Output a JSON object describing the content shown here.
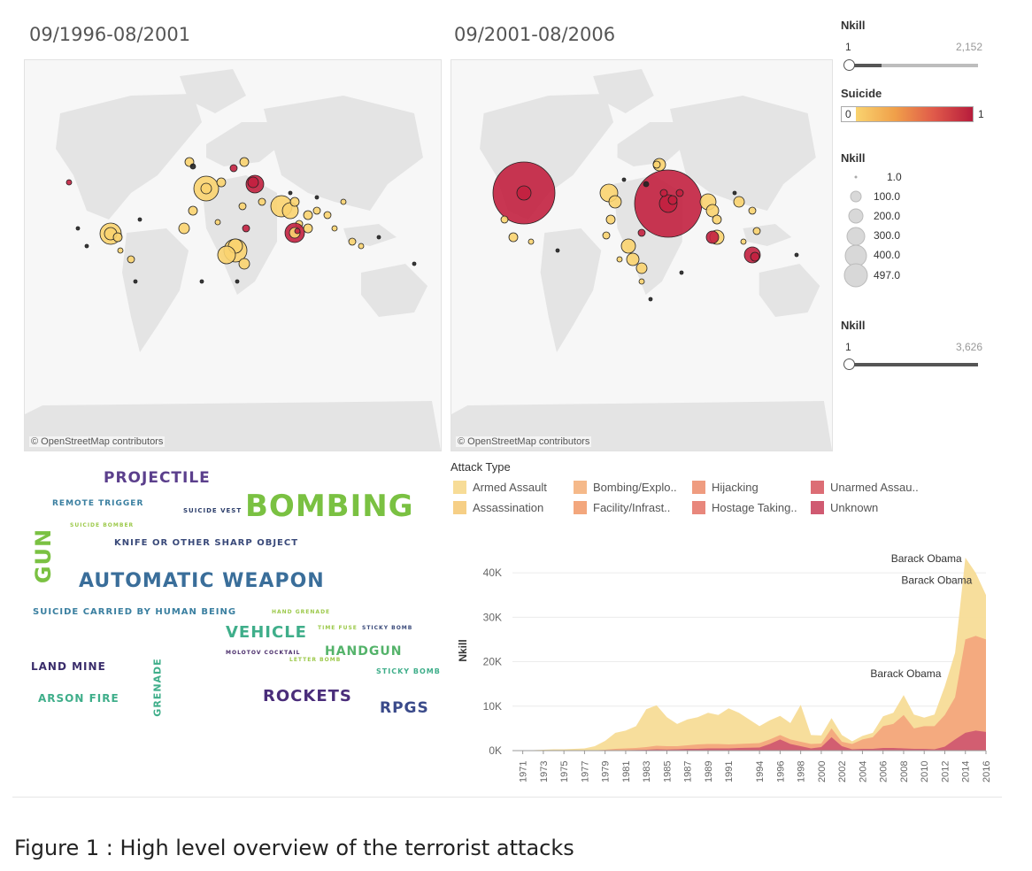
{
  "maps": [
    {
      "title": "09/1996-08/2001",
      "credit": "© OpenStreetMap contributors"
    },
    {
      "title": "09/2001-08/2006",
      "credit": "© OpenStreetMap contributors"
    }
  ],
  "legend": {
    "nkill_slider_1": {
      "title": "Nkill",
      "min": "1",
      "max": "2,152"
    },
    "suicide": {
      "title": "Suicide",
      "min": "0",
      "max": "1",
      "color_low": "#f9d36f",
      "color_high": "#b71c3c"
    },
    "nkill_size": {
      "title": "Nkill",
      "values": [
        "1.0",
        "100.0",
        "200.0",
        "300.0",
        "400.0",
        "497.0"
      ]
    },
    "nkill_slider_2": {
      "title": "Nkill",
      "min": "1",
      "max": "3,626"
    }
  },
  "attack_type": {
    "title": "Attack Type",
    "items": [
      {
        "label": "Armed Assault",
        "color": "#f7dc97"
      },
      {
        "label": "Assassination",
        "color": "#f6cf86"
      },
      {
        "label": "Bombing/Explo..",
        "color": "#f5b98a"
      },
      {
        "label": "Facility/Infrast..",
        "color": "#f3a77d"
      },
      {
        "label": "Hijacking",
        "color": "#ef9c80"
      },
      {
        "label": "Hostage Taking..",
        "color": "#e8877c"
      },
      {
        "label": "Unarmed Assau..",
        "color": "#dc6d75"
      },
      {
        "label": "Unknown",
        "color": "#d05a71"
      }
    ]
  },
  "word_cloud": {
    "words": [
      {
        "text": "PROJECTILE",
        "color": "#5b3f8c"
      },
      {
        "text": "REMOTE TRIGGER",
        "color": "#3a7fa0"
      },
      {
        "text": "SUICIDE VEST",
        "color": "#2c3e6b"
      },
      {
        "text": "BOMBING",
        "color": "#7ac142"
      },
      {
        "text": "SUICIDE BOMBER",
        "color": "#9cc94a"
      },
      {
        "text": "KNIFE OR OTHER SHARP OBJECT",
        "color": "#3a4a7a"
      },
      {
        "text": "GUN",
        "color": "#7ac142"
      },
      {
        "text": "AUTOMATIC WEAPON",
        "color": "#3a6e9a"
      },
      {
        "text": "SUICIDE CARRIED BY HUMAN BEING",
        "color": "#3a7fa0"
      },
      {
        "text": "HAND GRENADE",
        "color": "#9cc94a"
      },
      {
        "text": "VEHICLE",
        "color": "#3fae8a"
      },
      {
        "text": "TIME FUSE",
        "color": "#9cc94a"
      },
      {
        "text": "STICKY BOMB",
        "color": "#3a4a7a"
      },
      {
        "text": "MOLOTOV COCKTAIL",
        "color": "#4a2d6b"
      },
      {
        "text": "HANDGUN",
        "color": "#54b36a"
      },
      {
        "text": "LETTER BOMB",
        "color": "#9cc94a"
      },
      {
        "text": "STICKY BOMB",
        "color": "#3fae8a"
      },
      {
        "text": "LAND MINE",
        "color": "#3a2d6b"
      },
      {
        "text": "GRENADE",
        "color": "#3fae8a"
      },
      {
        "text": "ARSON FIRE",
        "color": "#3fae8a"
      },
      {
        "text": "ROCKETS",
        "color": "#4a2d7a"
      },
      {
        "text": "RPGS",
        "color": "#3a4a8a"
      }
    ]
  },
  "chart_data": {
    "type": "area",
    "ylabel": "Nkill",
    "yticks": [
      "0K",
      "10K",
      "20K",
      "30K",
      "40K"
    ],
    "ylim": [
      0,
      45000
    ],
    "x_labels": [
      "1971",
      "1973",
      "1975",
      "1977",
      "1979",
      "1981",
      "1983",
      "1985",
      "1987",
      "1989",
      "1991",
      "1994",
      "1996",
      "1998",
      "2000",
      "2002",
      "2004",
      "2006",
      "2008",
      "2010",
      "2012",
      "2014",
      "2016"
    ],
    "x": [
      1970,
      1971,
      1972,
      1973,
      1974,
      1975,
      1976,
      1977,
      1978,
      1979,
      1980,
      1981,
      1982,
      1983,
      1984,
      1985,
      1986,
      1987,
      1988,
      1989,
      1990,
      1991,
      1992,
      1994,
      1995,
      1996,
      1997,
      1998,
      1999,
      2000,
      2001,
      2002,
      2003,
      2004,
      2005,
      2006,
      2007,
      2008,
      2009,
      2010,
      2011,
      2012,
      2013,
      2014,
      2015,
      2016
    ],
    "series": [
      {
        "color": "#d05a71",
        "values": [
          0,
          0,
          0,
          0,
          0,
          0,
          0,
          0,
          0,
          50,
          80,
          100,
          150,
          200,
          300,
          250,
          300,
          400,
          400,
          500,
          500,
          500,
          600,
          700,
          1500,
          2500,
          1500,
          1000,
          500,
          800,
          3000,
          1000,
          300,
          400,
          400,
          600,
          600,
          500,
          400,
          400,
          300,
          900,
          2500,
          4000,
          4500,
          4200
        ]
      },
      {
        "color": "#f3a77d",
        "values": [
          0,
          0,
          0,
          0,
          0,
          0,
          0,
          0,
          50,
          200,
          400,
          500,
          600,
          800,
          1100,
          1000,
          1000,
          1200,
          1400,
          1500,
          1500,
          1400,
          1500,
          1700,
          2500,
          3500,
          2500,
          2000,
          1500,
          1600,
          5000,
          2000,
          1500,
          2500,
          3000,
          5500,
          6000,
          8000,
          5000,
          5500,
          5500,
          8000,
          12000,
          25000,
          25800,
          25000
        ]
      },
      {
        "color": "#f7dc97",
        "values": [
          0,
          100,
          100,
          200,
          300,
          300,
          400,
          500,
          1000,
          2200,
          4000,
          4500,
          5500,
          9300,
          10200,
          7500,
          6000,
          7000,
          7500,
          8500,
          8000,
          9500,
          8500,
          5500,
          6800,
          7800,
          6200,
          10300,
          3500,
          3400,
          7300,
          3500,
          2100,
          3300,
          4000,
          7700,
          8500,
          12500,
          8100,
          7400,
          8100,
          14500,
          22000,
          43400,
          40000,
          35000
        ]
      }
    ],
    "annotations": [
      {
        "text": "Barack Obama",
        "x": 2014,
        "value": 43400
      },
      {
        "text": "Barack Obama",
        "x": 2015,
        "value": 38500
      },
      {
        "text": "Barack Obama",
        "x": 2012,
        "value": 17500
      }
    ]
  },
  "caption": "Figure 1 : High level overview of the terrorist attacks"
}
